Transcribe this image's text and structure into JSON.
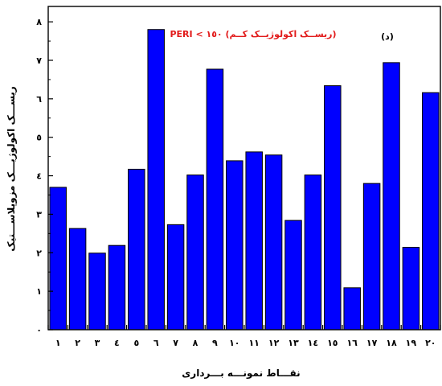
{
  "chart_data": {
    "type": "bar",
    "categories": [
      "۱",
      "۲",
      "۳",
      "٤",
      "٥",
      "٦",
      "۷",
      "۸",
      "۹",
      "۱۰",
      "۱۱",
      "۱۲",
      "۱۳",
      "۱٤",
      "۱٥",
      "۱٦",
      "۱۷",
      "۱۸",
      "۱۹",
      "۲۰"
    ],
    "values": [
      3.7,
      2.63,
      1.99,
      2.19,
      4.17,
      7.8,
      2.73,
      4.02,
      6.77,
      4.39,
      4.62,
      4.54,
      2.84,
      4.02,
      6.34,
      1.09,
      3.8,
      6.94,
      2.14,
      6.16
    ],
    "bar_color": "#0000ff",
    "ylim": [
      0,
      8.4
    ],
    "yticks": [
      0,
      1,
      2,
      3,
      4,
      5,
      6,
      7,
      8
    ],
    "ytick_labels": [
      "۰",
      "۱",
      "۲",
      "۳",
      "٤",
      "٥",
      "٦",
      "۷",
      "۸"
    ],
    "ylabel": "ریســـک اکولوژیـــک مزوپلاســـتیک",
    "xlabel": "نقـــاط نمونـــه بـــرداری",
    "annotation": "PERI < ۱٥۰ (ریســک اکولوژیــک کــم)",
    "annotation_color": "#e21b1b",
    "panel_label": "(د)",
    "grid": false,
    "legend": "none"
  }
}
